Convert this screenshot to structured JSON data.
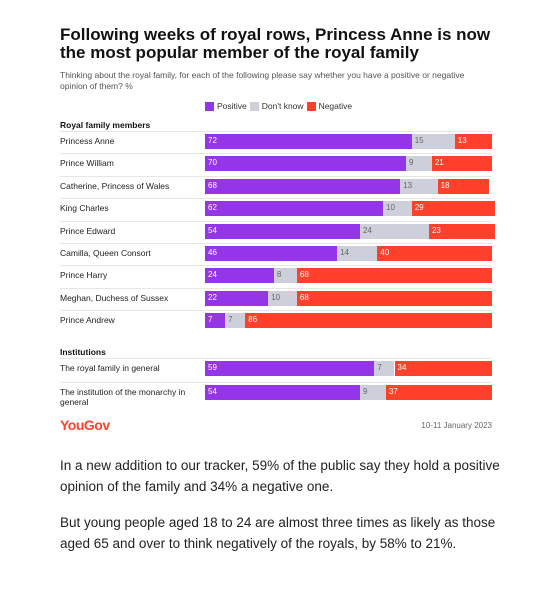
{
  "header": {
    "title": "Following weeks of royal rows, Princess Anne is now the most popular member of the royal family",
    "subtitle": "Thinking about the royal family, for each of the following please say whether you have a positive or negative opinion of them? %"
  },
  "chart_data": [
    {
      "type": "bar",
      "title": "Royal family members",
      "stacked": true,
      "xlim": [
        0,
        101
      ],
      "categories": [
        "Princess Anne",
        "Prince William",
        "Catherine, Princess of Wales",
        "King Charles",
        "Prince Edward",
        "Camilla, Queen Consort",
        "Prince Harry",
        "Meghan, Duchess of Sussex",
        "Prince Andrew"
      ],
      "series": [
        {
          "name": "Positive",
          "color": "#9435e8",
          "values": [
            72,
            70,
            68,
            62,
            54,
            46,
            24,
            22,
            7
          ]
        },
        {
          "name": "Don't know",
          "color": "#cdd0da",
          "values": [
            15,
            9,
            13,
            10,
            24,
            14,
            8,
            10,
            7
          ]
        },
        {
          "name": "Negative",
          "color": "#ff412c",
          "values": [
            13,
            21,
            18,
            29,
            23,
            40,
            68,
            68,
            86
          ]
        }
      ]
    },
    {
      "type": "bar",
      "title": "Institutions",
      "stacked": true,
      "xlim": [
        0,
        101
      ],
      "categories": [
        "The royal family in general",
        "The institution of the monarchy in general"
      ],
      "series": [
        {
          "color": "#9435e8",
          "values": [
            59,
            54
          ]
        },
        {
          "color": "#cdd0da",
          "values": [
            7,
            9
          ]
        },
        {
          "color": "#ff412c",
          "values": [
            34,
            37
          ]
        }
      ]
    }
  ],
  "footer": {
    "source": "YouGov",
    "date": "10-11 January 2023"
  },
  "article": {
    "paragraphs": [
      "In a new addition to our tracker, 59% of the public say they hold a positive opinion of the family and 34% a negative one.",
      "But young people aged 18 to 24 are almost three times as likely as those aged 65 and over to think negatively of the royals, by 58% to 21%."
    ]
  }
}
